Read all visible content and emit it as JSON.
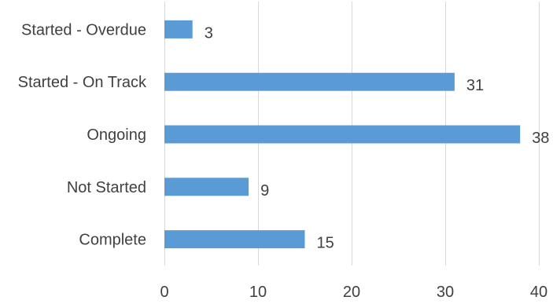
{
  "chart_data": {
    "type": "bar",
    "orientation": "horizontal",
    "categories": [
      "Started - Overdue",
      "Started - On Track",
      "Ongoing",
      "Not Started",
      "Complete"
    ],
    "values": [
      3,
      31,
      38,
      9,
      15
    ],
    "data_labels": [
      "3",
      "31",
      "38",
      "9",
      "15"
    ],
    "x_ticks": [
      0,
      10,
      20,
      30,
      40
    ],
    "x_tick_labels": [
      "0",
      "10",
      "20",
      "30",
      "40"
    ],
    "xlim": [
      0,
      40
    ],
    "title": "",
    "xlabel": "",
    "ylabel": "",
    "grid": "vertical",
    "legend": "none",
    "colors": {
      "bar": "#5b9bd5",
      "grid": "#d9d9d9",
      "text": "#404040"
    }
  }
}
